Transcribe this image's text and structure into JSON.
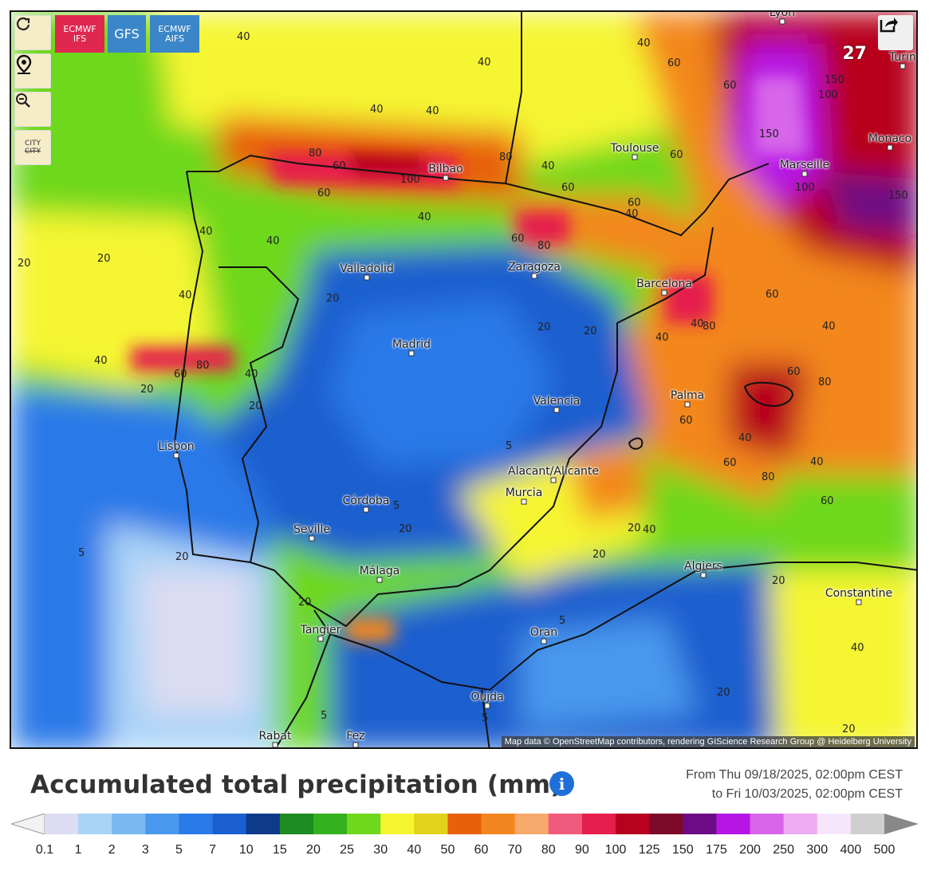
{
  "map": {
    "cities": [
      {
        "name": "Lyon"
      },
      {
        "name": "Turin"
      },
      {
        "name": "Monaco"
      },
      {
        "name": "Toulouse"
      },
      {
        "name": "Marseille"
      },
      {
        "name": "Bilbao"
      },
      {
        "name": "Valladolid"
      },
      {
        "name": "Zaragoza"
      },
      {
        "name": "Barcelona"
      },
      {
        "name": "Madrid"
      },
      {
        "name": "Valencia"
      },
      {
        "name": "Palma"
      },
      {
        "name": "Lisbon"
      },
      {
        "name": "Alacant/Alicante"
      },
      {
        "name": "Murcia"
      },
      {
        "name": "Córdoba"
      },
      {
        "name": "Seville"
      },
      {
        "name": "Málaga"
      },
      {
        "name": "Algiers"
      },
      {
        "name": "Constantine"
      },
      {
        "name": "Tangier"
      },
      {
        "name": "Oran"
      },
      {
        "name": "Oujda"
      },
      {
        "name": "Rabat"
      },
      {
        "name": "Fez"
      }
    ],
    "contour_labels": [
      "40",
      "40",
      "40",
      "40",
      "40",
      "60",
      "60",
      "80",
      "60",
      "100",
      "80",
      "40",
      "60",
      "150",
      "100",
      "150",
      "60",
      "60",
      "100",
      "150",
      "40",
      "60",
      "80",
      "60",
      "40",
      "20",
      "20",
      "40",
      "40",
      "40",
      "20",
      "40",
      "40",
      "60",
      "80",
      "40",
      "20",
      "20",
      "20",
      "20",
      "40",
      "80",
      "40",
      "60",
      "80",
      "60",
      "60",
      "60",
      "80",
      "40",
      "60",
      "40",
      "20",
      "5",
      "5",
      "5",
      "20",
      "20",
      "20",
      "5",
      "5",
      "20",
      "20",
      "40",
      "20",
      "5",
      "40",
      "20"
    ],
    "attribution": "Map data © OpenStreetMap contributors, rendering GIScience Research Group @ Heidelberg University",
    "models": [
      {
        "line1": "ECMWF",
        "line2": "IFS",
        "color": "#e0274f"
      },
      {
        "line1": "GFS",
        "line2": "",
        "color": "#3a86c8"
      },
      {
        "line1": "ECMWF",
        "line2": "AIFS",
        "color": "#3a86c8"
      }
    ],
    "city_toggle": "CITY",
    "partial_label": "27"
  },
  "title": "Accumulated total precipitation (mm)",
  "date_from": "From Thu 09/18/2025, 02:00pm CEST",
  "date_to": "to Fri 10/03/2025, 02:00pm CEST",
  "legend": {
    "labels": [
      "0.1",
      "1",
      "2",
      "3",
      "5",
      "7",
      "10",
      "15",
      "20",
      "25",
      "30",
      "40",
      "50",
      "60",
      "70",
      "80",
      "90",
      "100",
      "125",
      "150",
      "175",
      "200",
      "250",
      "300",
      "400",
      "500"
    ],
    "colors": [
      "#f2f2f2",
      "#dcdcf2",
      "#a9d3f7",
      "#7ab8f2",
      "#4a98ee",
      "#2a79e8",
      "#1a5fcf",
      "#0e3a8a",
      "#1e8a22",
      "#33b21d",
      "#6ed81c",
      "#f5f530",
      "#e2d21c",
      "#e8600c",
      "#f3871f",
      "#f7a86b",
      "#f05a7c",
      "#e61e4d",
      "#b8001f",
      "#7d0a28",
      "#6d0a85",
      "#b516e6",
      "#d766ea",
      "#eeaaf2",
      "#f6e6fb",
      "#cfcfcf",
      "#888888"
    ]
  }
}
